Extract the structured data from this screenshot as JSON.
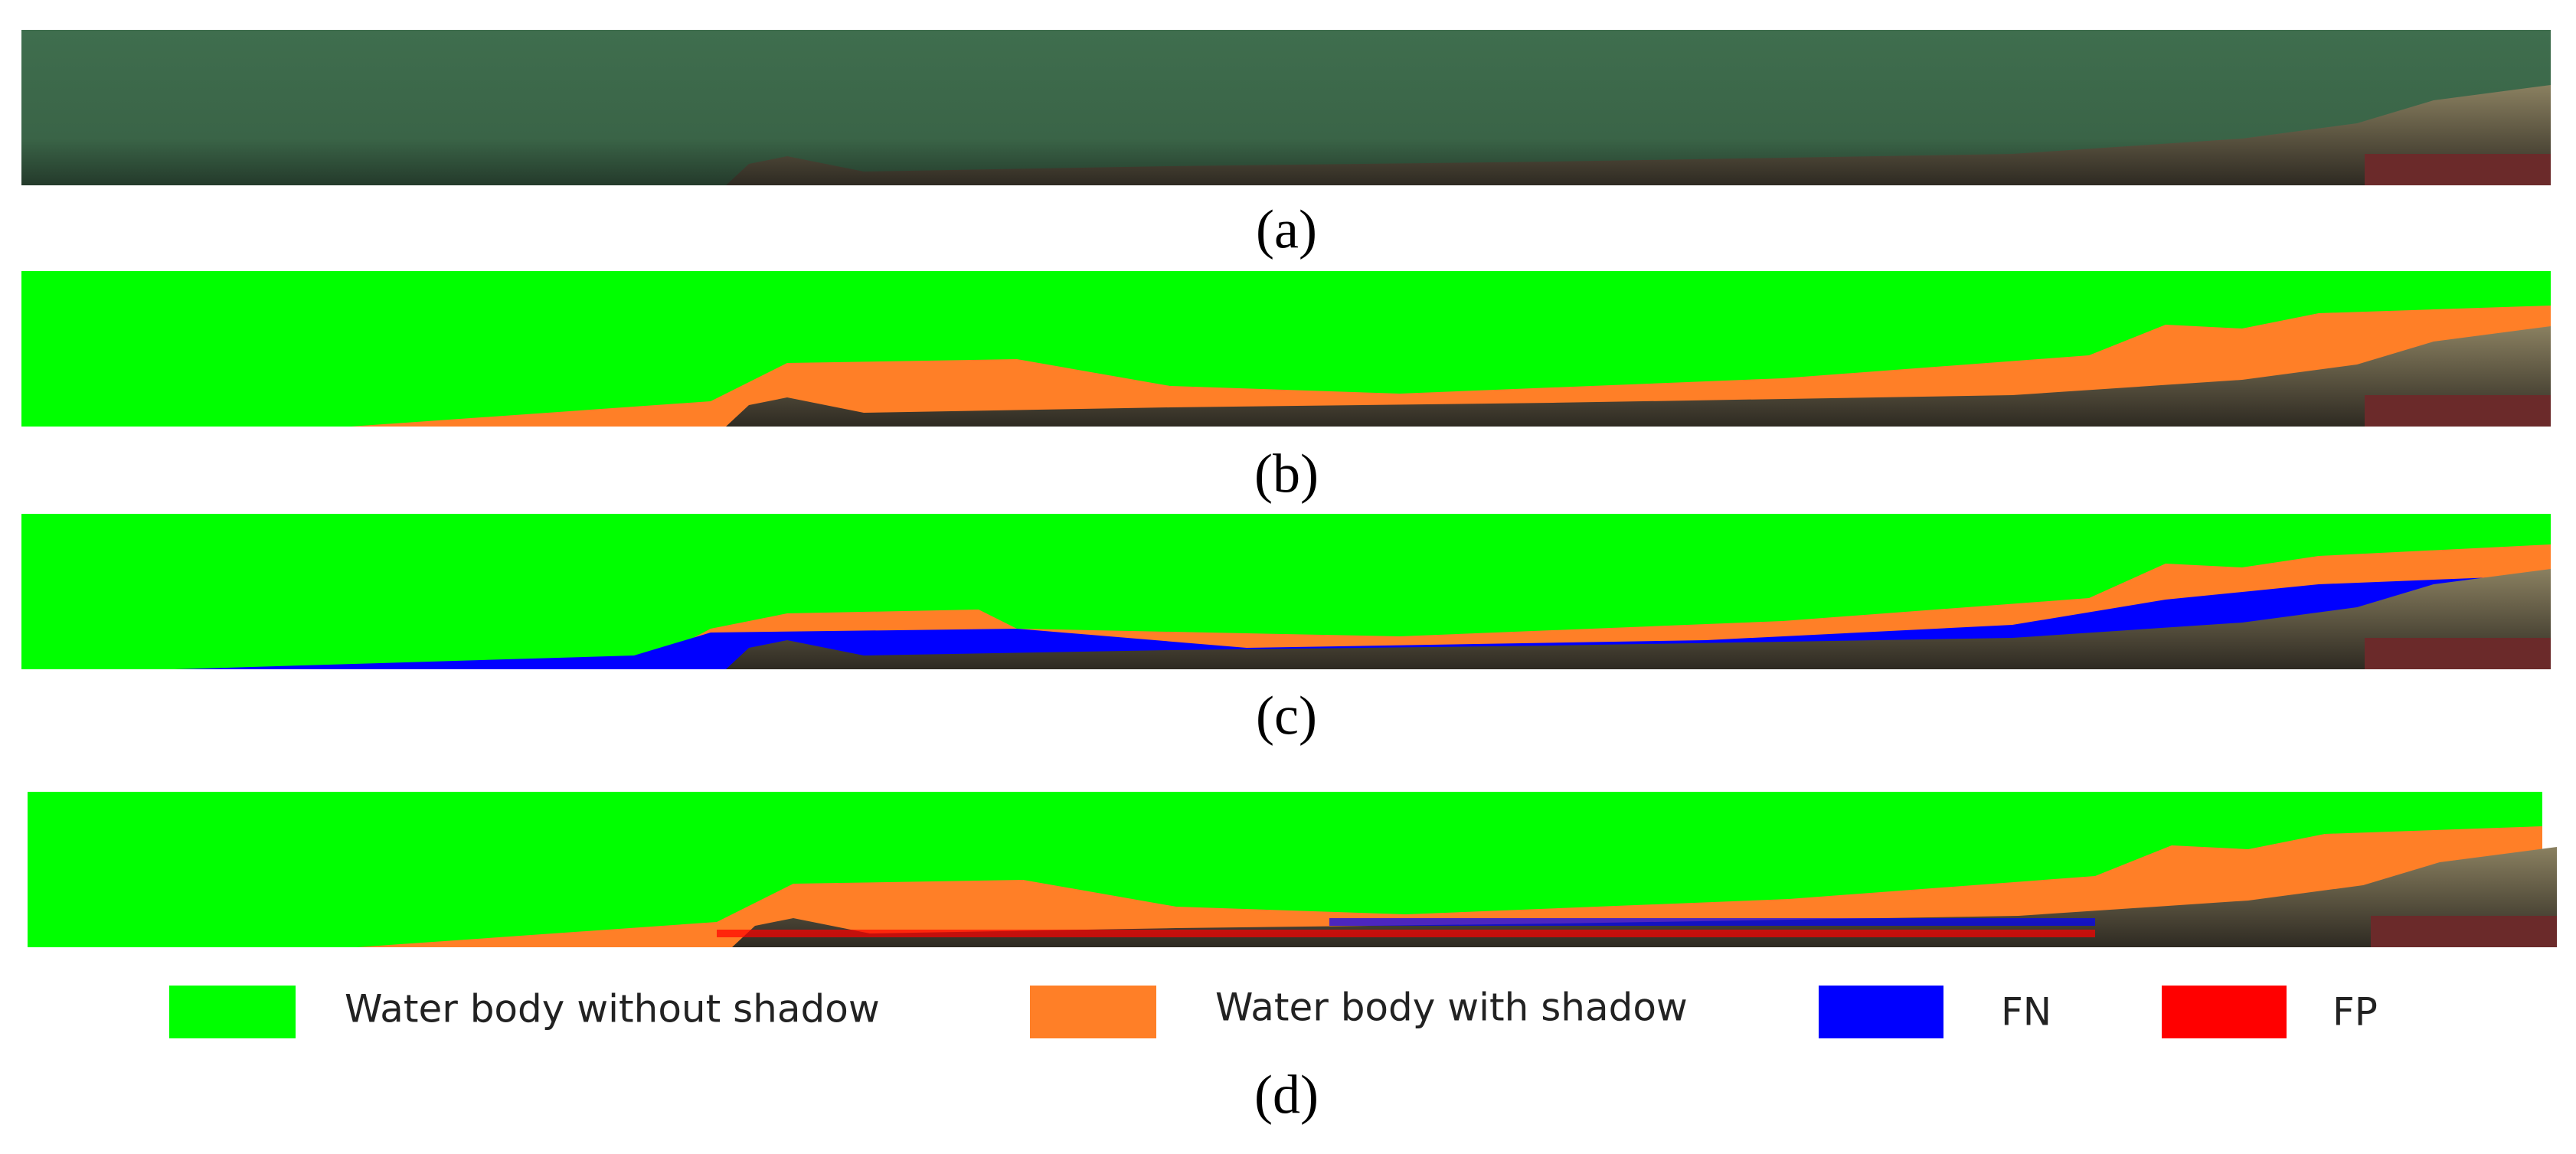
{
  "panels": [
    {
      "label": "(a)"
    },
    {
      "label": "(b)"
    },
    {
      "label": "(c)"
    },
    {
      "label": "(d)"
    }
  ],
  "legend": [
    {
      "label": "Water body without shadow",
      "color": "#00ff00"
    },
    {
      "label": "Water body with shadow",
      "color": "#ff7f27"
    },
    {
      "label": "FN",
      "color": "#0000ff"
    },
    {
      "label": "FP",
      "color": "#ff0000"
    }
  ]
}
